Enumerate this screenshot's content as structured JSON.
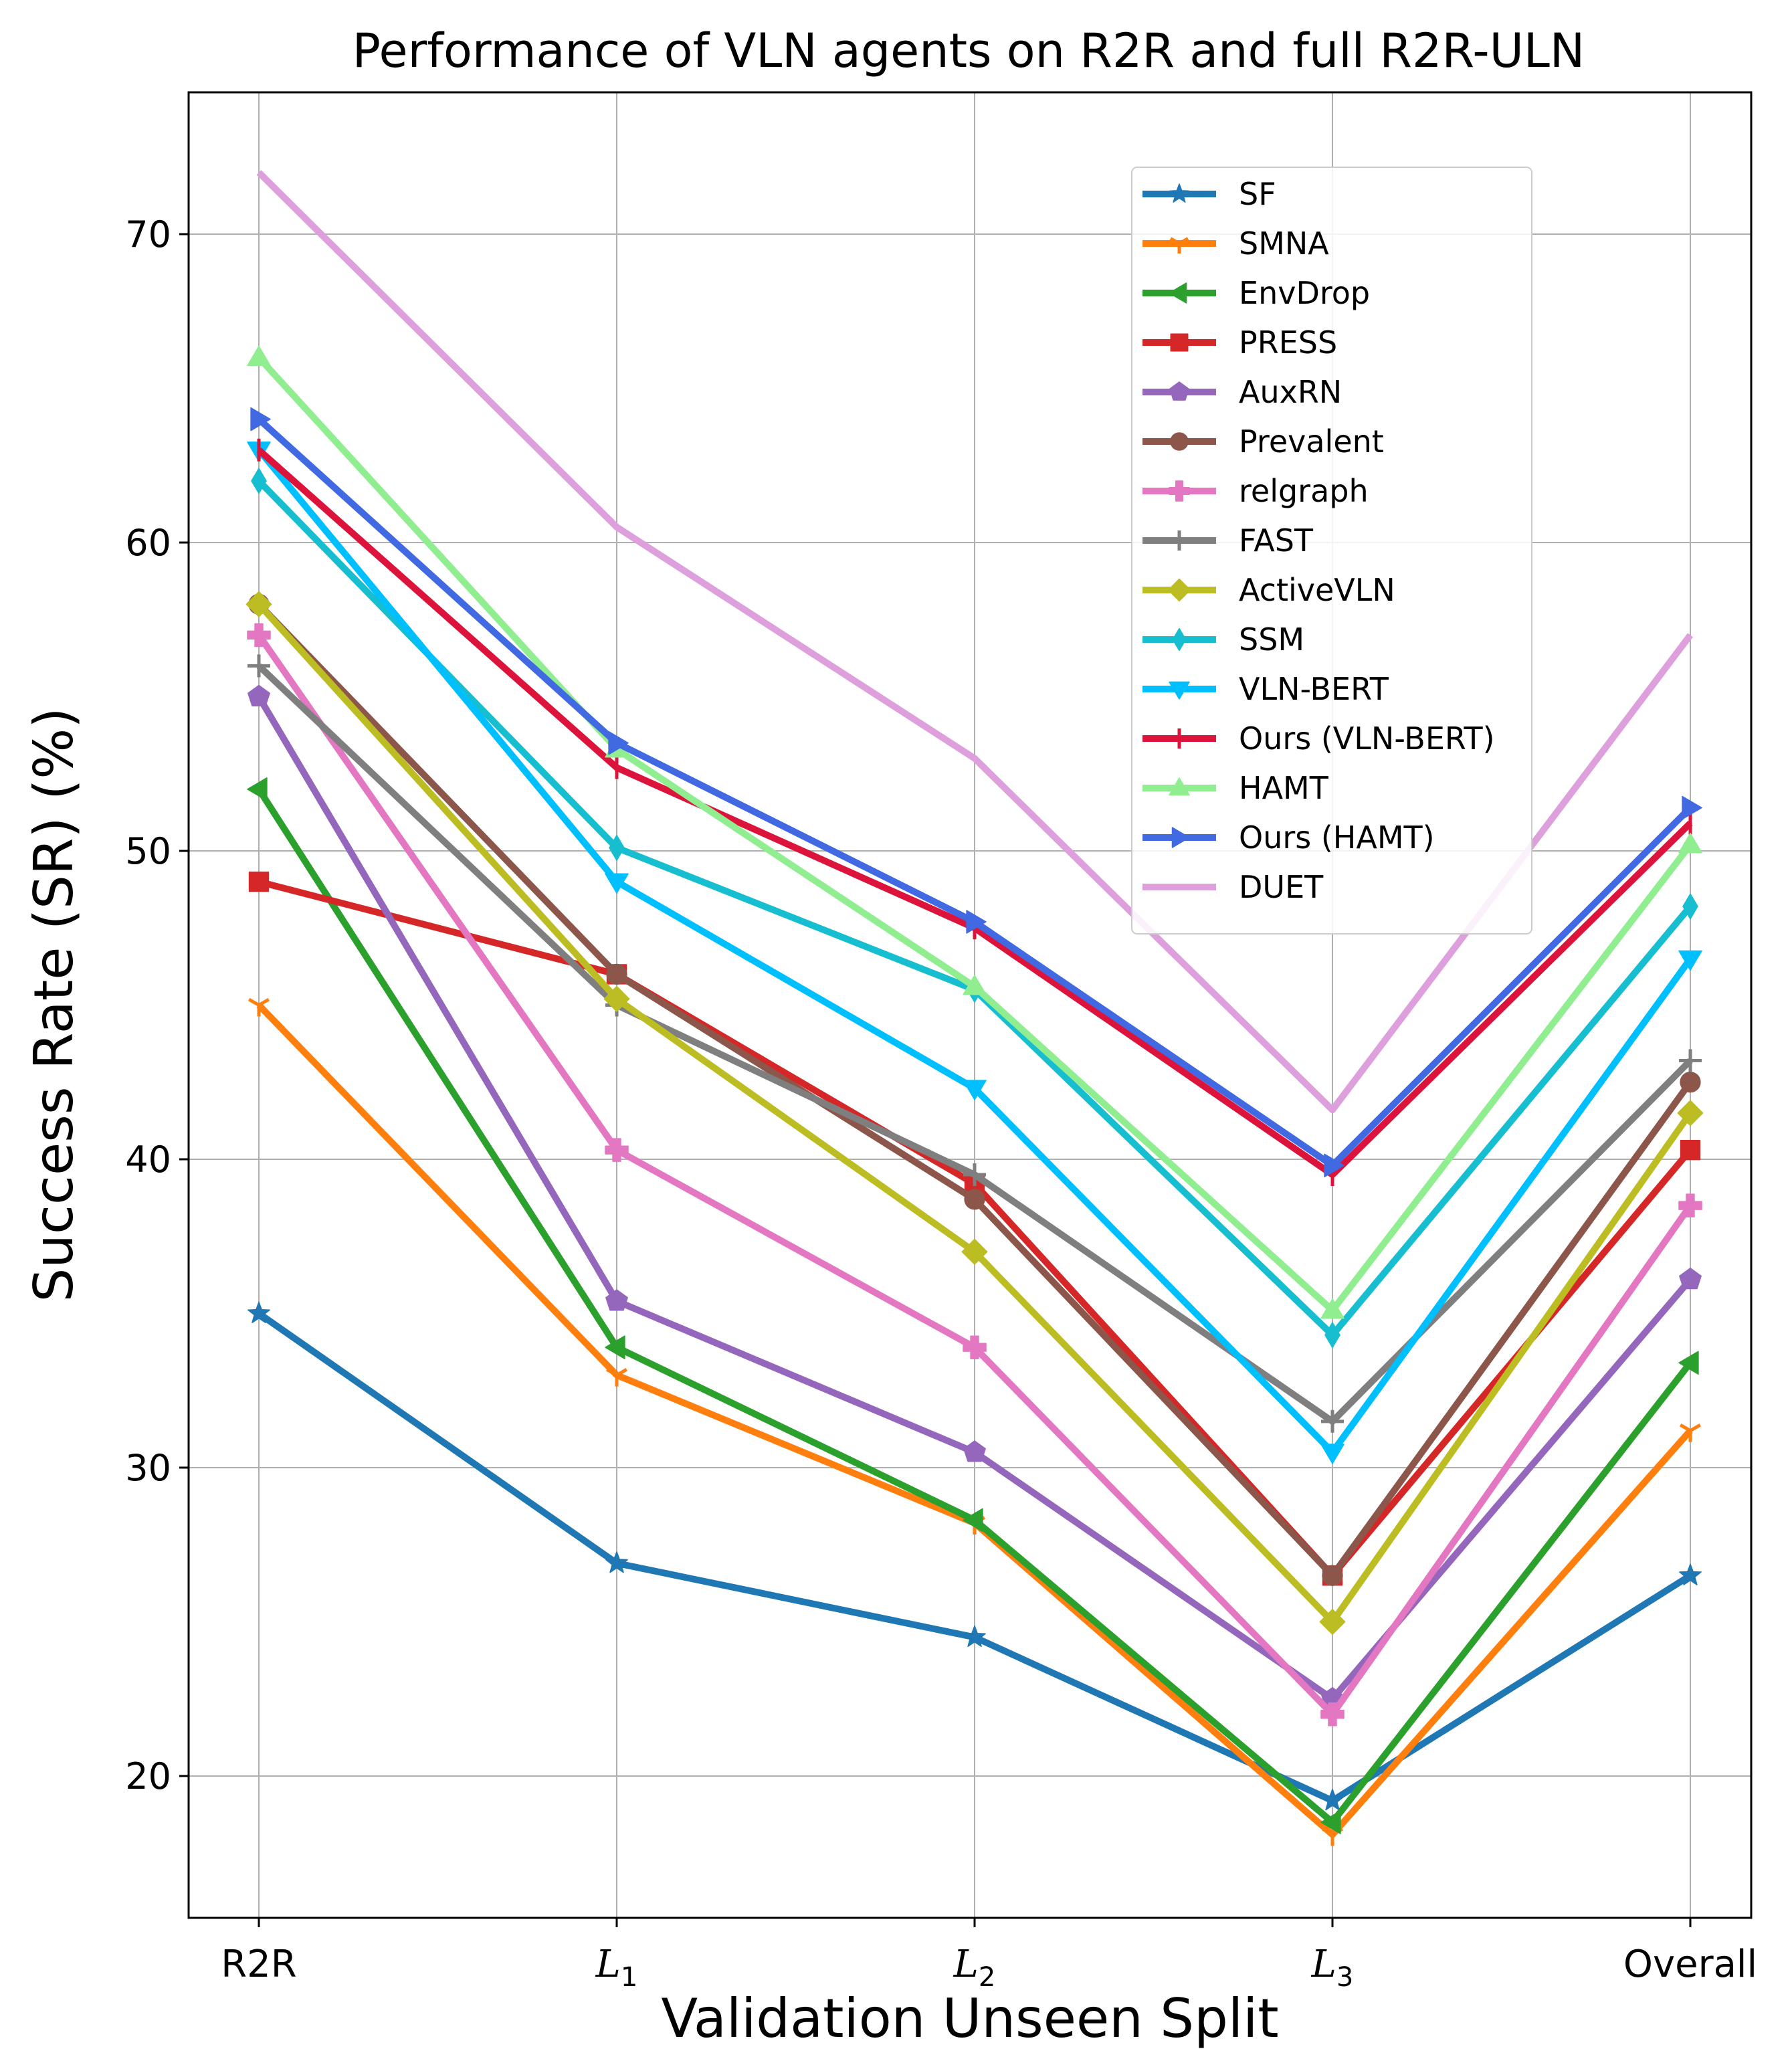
{
  "chart_data": {
    "type": "line",
    "title": "Performance of VLN agents on R2R and full R2R-ULN",
    "xlabel": "Validation Unseen Split",
    "ylabel": "Success Rate (SR) (%)",
    "categories": [
      {
        "base": "R2R",
        "sub": ""
      },
      {
        "base": "L",
        "sub": "1"
      },
      {
        "base": "L",
        "sub": "2"
      },
      {
        "base": "L",
        "sub": "3"
      },
      {
        "base": "Overall",
        "sub": ""
      }
    ],
    "ylim": [
      15.4,
      74.6
    ],
    "yticks": [
      20,
      30,
      40,
      50,
      60,
      70
    ],
    "grid": true,
    "legend_position": "upper-right",
    "series": [
      {
        "name": "SF",
        "color": "#1f77b4",
        "marker": "star",
        "values": [
          35,
          26.9,
          24.5,
          19.2,
          26.5
        ]
      },
      {
        "name": "SMNA",
        "color": "#ff7f0e",
        "marker": "tri_down",
        "values": [
          45,
          33,
          28.2,
          18.1,
          31.2
        ]
      },
      {
        "name": "EnvDrop",
        "color": "#2ca02c",
        "marker": "triangle_left",
        "values": [
          52,
          33.9,
          28.3,
          18.5,
          33.4
        ]
      },
      {
        "name": "PRESS",
        "color": "#d62728",
        "marker": "square",
        "values": [
          49,
          46,
          39.2,
          26.5,
          40.3
        ]
      },
      {
        "name": "AuxRN",
        "color": "#9467bd",
        "marker": "pentagon",
        "values": [
          55,
          35.4,
          30.5,
          22.5,
          36.1
        ]
      },
      {
        "name": "Prevalent",
        "color": "#8c564b",
        "marker": "circle",
        "values": [
          58,
          46,
          38.7,
          26.5,
          42.5
        ]
      },
      {
        "name": "relgraph",
        "color": "#e377c2",
        "marker": "plus_filled",
        "values": [
          57,
          40.3,
          33.9,
          22,
          38.5
        ]
      },
      {
        "name": "FAST",
        "color": "#7f7f7f",
        "marker": "plus",
        "values": [
          56,
          45,
          39.5,
          31.5,
          43.2
        ]
      },
      {
        "name": "ActiveVLN",
        "color": "#bcbd22",
        "marker": "diamond",
        "values": [
          58,
          45.2,
          37,
          25,
          41.5
        ]
      },
      {
        "name": "SSM",
        "color": "#17becf",
        "marker": "thin_diamond",
        "values": [
          62,
          50.1,
          45.5,
          34.3,
          48.2
        ]
      },
      {
        "name": "VLN-BERT",
        "color": "#00bfff",
        "marker": "triangle_down",
        "values": [
          63,
          49,
          42.3,
          30.5,
          46.5
        ]
      },
      {
        "name": "Ours (VLN-BERT)",
        "color": "#dc143c",
        "marker": "vline",
        "values": [
          63,
          52.7,
          47.5,
          39.5,
          50.9
        ]
      },
      {
        "name": "HAMT",
        "color": "#90ee90",
        "marker": "triangle_up",
        "values": [
          66,
          53.3,
          45.6,
          35.1,
          50.2
        ]
      },
      {
        "name": "Ours (HAMT)",
        "color": "#4169e1",
        "marker": "triangle_right",
        "values": [
          64,
          53.5,
          47.7,
          39.8,
          51.4
        ]
      },
      {
        "name": "DUET",
        "color": "#dda0dd",
        "marker": "none",
        "values": [
          72,
          60.5,
          53,
          41.6,
          57
        ]
      }
    ]
  }
}
